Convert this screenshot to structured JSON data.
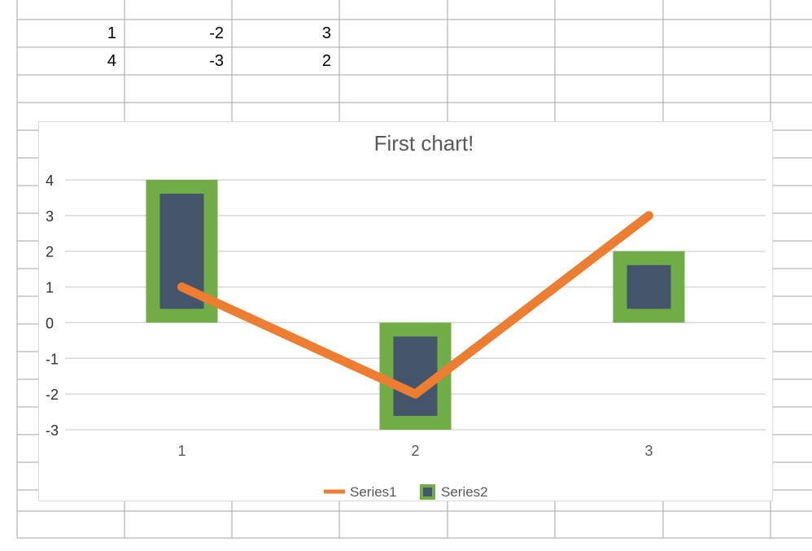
{
  "spreadsheet": {
    "rows": [
      [
        "1",
        "-2",
        "3"
      ],
      [
        "4",
        "-3",
        "2"
      ]
    ]
  },
  "chart_data": {
    "type": "bar",
    "title": "First chart!",
    "categories": [
      "1",
      "2",
      "3"
    ],
    "series": [
      {
        "name": "Series1",
        "type": "line",
        "values": [
          1,
          -2,
          3
        ],
        "color": "#ed7d31"
      },
      {
        "name": "Series2",
        "type": "bar",
        "values": [
          4,
          -3,
          2
        ],
        "color": "#44546a",
        "border_color": "#70ad47"
      }
    ],
    "ylim": [
      -3,
      4
    ],
    "yticks": [
      "4",
      "3",
      "2",
      "1",
      "0",
      "-1",
      "-2",
      "-3"
    ],
    "grid": true,
    "legend": "bottom"
  },
  "colors": {
    "grid_line": "#d9d9d9",
    "sheet_line": "#a6a6a6",
    "axis_text": "#595959",
    "title_text": "#595959"
  }
}
